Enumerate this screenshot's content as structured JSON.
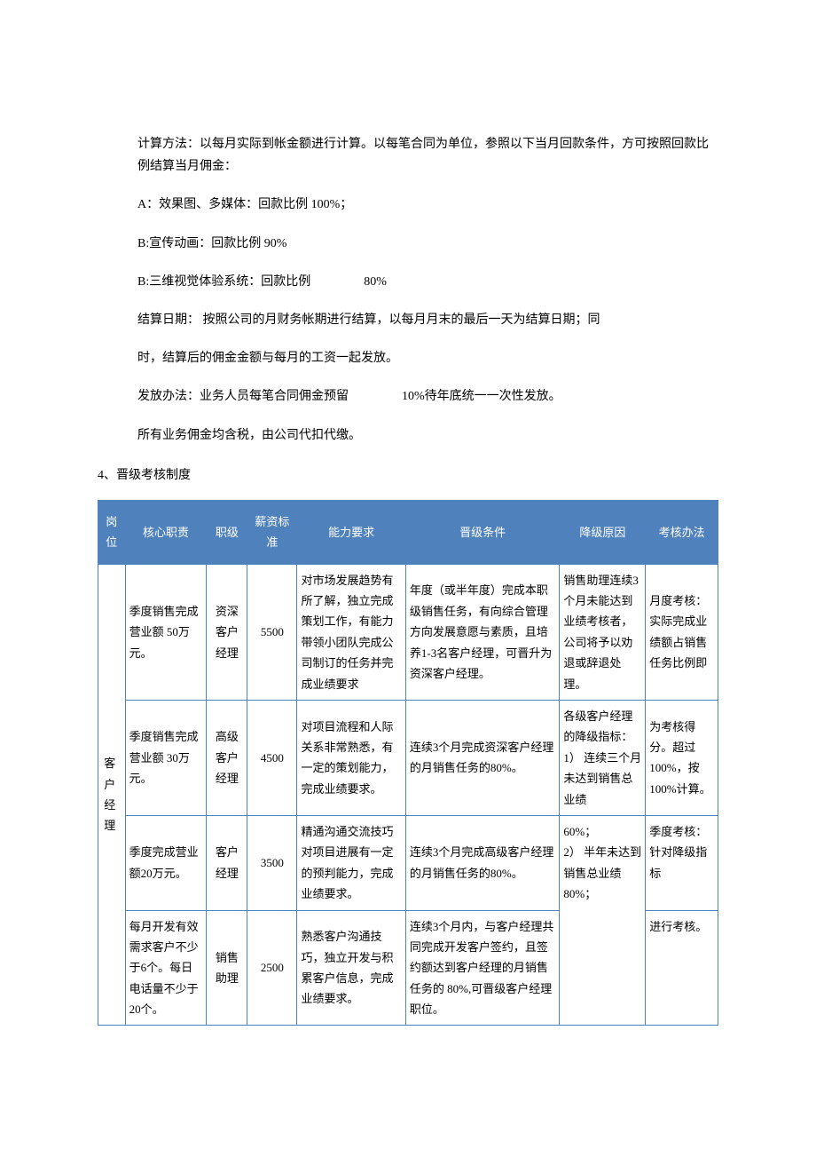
{
  "intro": {
    "p1": "计算方法：以每月实际到帐金额进行计算。以每笔合同为单位，参照以下当月回款条件，方可按照回款比例结算当月佣金：",
    "pA": "A：效果图、多媒体：回款比例 100%；",
    "pB1": "B:宣传动画：回款比例 90%",
    "pB2_prefix": "B:三维视觉体验系统：回款比例",
    "pB2_suffix": "80%",
    "p_settle": "结算日期： 按照公司的月财务帐期进行结算，以每月月末的最后一天为结算日期；同",
    "p_settle2": "时，结算后的佣金金额与每月的工资一起发放。",
    "p_release_prefix": "发放办法：业务人员每笔合同佣金预留",
    "p_release_suffix": "10%待年底统一一次性发放。",
    "p_tax": "所有业务佣金均含税，由公司代扣代缴。"
  },
  "section_title": "4、晋级考核制度",
  "table": {
    "headers": {
      "position": "岗 位",
      "responsibility": "核心职责",
      "level": "职级",
      "salary": "薪资标准",
      "ability": "能力要求",
      "promotion": "晋级条件",
      "demotion": "降级原因",
      "assessment": "考核办法"
    },
    "position_label": "客 户经 理",
    "rows": [
      {
        "responsibility": "季度销售完成营业额 50万元。",
        "level": "资深客户经理",
        "salary": "5500",
        "ability": "对市场发展趋势有所了解，独立完成策划工作，有能力带领小团队完成公司制订的任务并完成业绩要求",
        "promotion": "年度（或半年度）完成本职级销售任务，有向综合管理方向发展意愿与素质，且培养1-3名客户经理，可晋升为资深客户经理。"
      },
      {
        "responsibility": "季度销售完成营业额 30万元。",
        "level": "高级客户经理",
        "salary": "4500",
        "ability": "对项目流程和人际关系非常熟悉，有一定的策划能力，完成业绩要求。",
        "promotion": "连续3个月完成资深客户经理的月销售任务的80%。"
      },
      {
        "responsibility": "季度完成营业额20万元。",
        "level": "客户经理",
        "salary": "3500",
        "ability": "精通沟通交流技巧对项目进展有一定的预判能力，完成业绩要求。",
        "promotion": "连续3个月完成高级客户经理的月销售任务的80%。"
      },
      {
        "responsibility": "每月开发有效需求客户不少于6个。每日电话量不少于20个。",
        "level": "销售助理",
        "salary": "2500",
        "ability": "熟悉客户沟通技巧，独立开发与积累客户信息，完成业绩要求。",
        "promotion": "连续3个月内，与客户经理共同完成开发客户签约，且签约额达到客户经理的月销售任务的 80%,可晋级客户经理职位。"
      }
    ],
    "demotion_part1": "销售助理连续3个月未能达到业绩考核者，公司将予以劝退或辞退处理。",
    "demotion_part2": "各级客户经理的降级指标：\n1） 连续三个月未达到销售总业绩",
    "demotion_part3": "60%；\n2） 半年未达到销售总业绩 80%；",
    "assessment_part1": "月度考核：实际完成业绩额占销售任务比例即",
    "assessment_part2": "为考核得分。超过100%，按100%计算。",
    "assessment_part3": "季度考核：针对降级指标",
    "assessment_part4": "进行考核。"
  }
}
